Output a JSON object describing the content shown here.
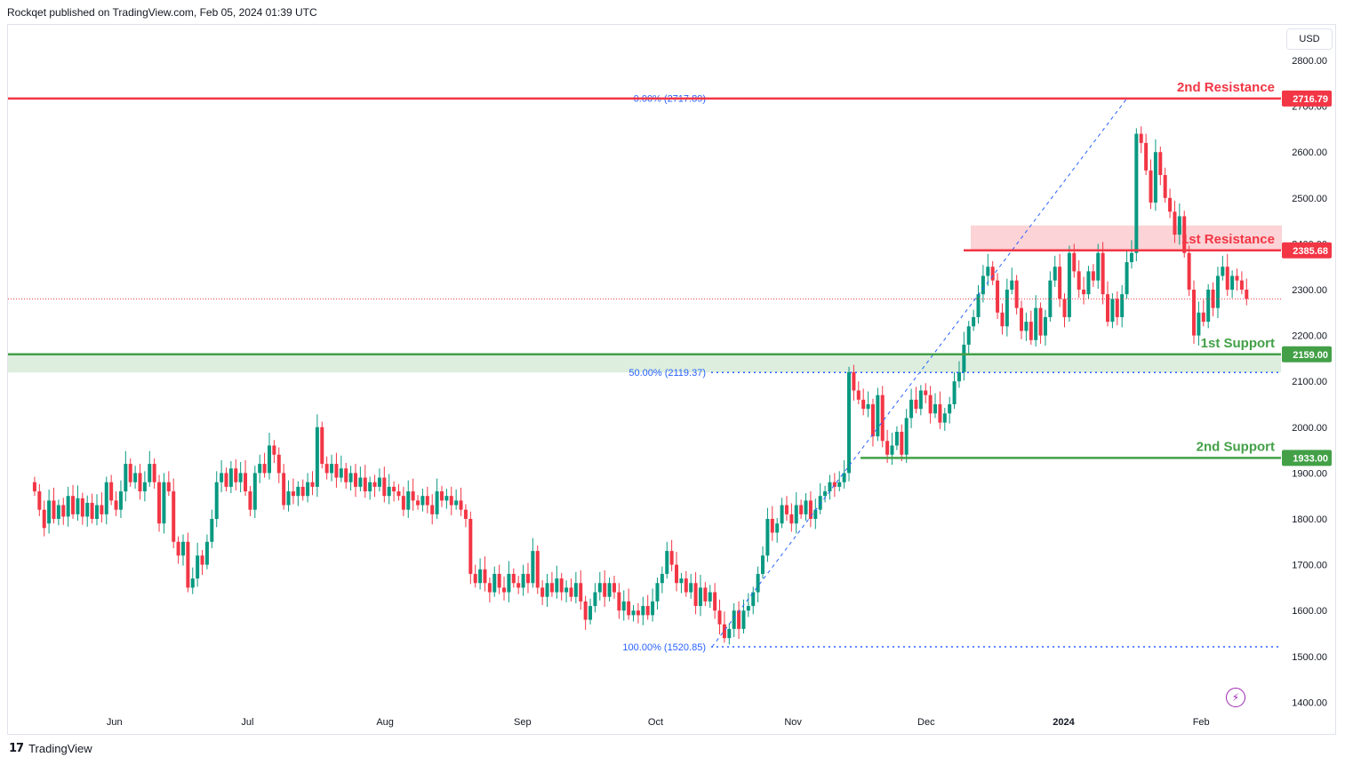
{
  "header": {
    "published": "Rockqet published on TradingView.com, Feb 05, 2024 01:39 UTC"
  },
  "footer": {
    "brand": "TradingView",
    "logo_glyph": "17"
  },
  "price_scale": {
    "currency": "USD"
  },
  "icons": {
    "flash": "⚡"
  },
  "colors": {
    "up": "#089981",
    "down": "#f23645",
    "resistance": "#f23645",
    "support": "#43a047",
    "fib": "#2962ff",
    "resistance_zone": "rgba(242,54,69,0.22)",
    "support_zone": "rgba(67,160,71,0.18)"
  },
  "chart_data": {
    "type": "candlestick",
    "title": "",
    "ylim": [
      1380,
      2870
    ],
    "y_ticks": [
      1400,
      1500,
      1600,
      1700,
      1800,
      1900,
      2000,
      2100,
      2200,
      2300,
      2400,
      2500,
      2600,
      2700,
      2800
    ],
    "y_tick_labels": [
      "1400.00",
      "1500.00",
      "1600.00",
      "1700.00",
      "1800.00",
      "1900.00",
      "2000.00",
      "2100.00",
      "2200.00",
      "2300.00",
      "2400.00",
      "2500.00",
      "2600.00",
      "2700.00",
      "2800.00"
    ],
    "x_labels": [
      {
        "label": "Jun",
        "day": 18
      },
      {
        "label": "Jul",
        "day": 48
      },
      {
        "label": "Aug",
        "day": 79
      },
      {
        "label": "Sep",
        "day": 110
      },
      {
        "label": "Oct",
        "day": 140
      },
      {
        "label": "Nov",
        "day": 171
      },
      {
        "label": "Dec",
        "day": 201
      },
      {
        "label": "2024",
        "day": 232,
        "bold": true
      },
      {
        "label": "Feb",
        "day": 263
      }
    ],
    "x_range": [
      -6,
      281
    ],
    "candles": [
      [
        1880,
        1860
      ],
      [
        1860,
        1820
      ],
      [
        1820,
        1780
      ],
      [
        1790,
        1840
      ],
      [
        1840,
        1800
      ],
      [
        1800,
        1830
      ],
      [
        1830,
        1805
      ],
      [
        1805,
        1850
      ],
      [
        1850,
        1810
      ],
      [
        1810,
        1845
      ],
      [
        1845,
        1805
      ],
      [
        1805,
        1835
      ],
      [
        1835,
        1800
      ],
      [
        1800,
        1830
      ],
      [
        1830,
        1810
      ],
      [
        1810,
        1880
      ],
      [
        1880,
        1840
      ],
      [
        1840,
        1820
      ],
      [
        1820,
        1860
      ],
      [
        1860,
        1920
      ],
      [
        1920,
        1880
      ],
      [
        1880,
        1900
      ],
      [
        1900,
        1860
      ],
      [
        1860,
        1880
      ],
      [
        1880,
        1920
      ],
      [
        1920,
        1880
      ],
      [
        1880,
        1790
      ],
      [
        1790,
        1880
      ],
      [
        1880,
        1860
      ],
      [
        1860,
        1750
      ],
      [
        1750,
        1720
      ],
      [
        1720,
        1750
      ],
      [
        1750,
        1650
      ],
      [
        1650,
        1670
      ],
      [
        1670,
        1720
      ],
      [
        1720,
        1700
      ],
      [
        1700,
        1750
      ],
      [
        1750,
        1800
      ],
      [
        1800,
        1880
      ],
      [
        1880,
        1900
      ],
      [
        1900,
        1870
      ],
      [
        1870,
        1910
      ],
      [
        1910,
        1880
      ],
      [
        1880,
        1900
      ],
      [
        1900,
        1860
      ],
      [
        1860,
        1820
      ],
      [
        1820,
        1900
      ],
      [
        1900,
        1920
      ],
      [
        1920,
        1900
      ],
      [
        1900,
        1960
      ],
      [
        1960,
        1940
      ],
      [
        1940,
        1900
      ],
      [
        1900,
        1830
      ],
      [
        1830,
        1860
      ],
      [
        1860,
        1850
      ],
      [
        1850,
        1870
      ],
      [
        1870,
        1850
      ],
      [
        1850,
        1880
      ],
      [
        1880,
        1870
      ],
      [
        1870,
        2000
      ],
      [
        2000,
        1920
      ],
      [
        1920,
        1900
      ],
      [
        1900,
        1920
      ],
      [
        1920,
        1890
      ],
      [
        1890,
        1910
      ],
      [
        1910,
        1880
      ],
      [
        1880,
        1900
      ],
      [
        1900,
        1870
      ],
      [
        1870,
        1890
      ],
      [
        1890,
        1860
      ],
      [
        1860,
        1880
      ],
      [
        1880,
        1870
      ],
      [
        1870,
        1890
      ],
      [
        1890,
        1850
      ],
      [
        1850,
        1870
      ],
      [
        1870,
        1860
      ],
      [
        1860,
        1850
      ],
      [
        1850,
        1820
      ],
      [
        1820,
        1860
      ],
      [
        1860,
        1840
      ],
      [
        1840,
        1830
      ],
      [
        1830,
        1850
      ],
      [
        1850,
        1830
      ],
      [
        1830,
        1810
      ],
      [
        1810,
        1860
      ],
      [
        1860,
        1840
      ],
      [
        1840,
        1850
      ],
      [
        1850,
        1830
      ],
      [
        1830,
        1840
      ],
      [
        1840,
        1820
      ],
      [
        1820,
        1800
      ],
      [
        1800,
        1680
      ],
      [
        1680,
        1660
      ],
      [
        1660,
        1690
      ],
      [
        1690,
        1660
      ],
      [
        1660,
        1640
      ],
      [
        1640,
        1680
      ],
      [
        1680,
        1650
      ],
      [
        1650,
        1640
      ],
      [
        1640,
        1680
      ],
      [
        1680,
        1660
      ],
      [
        1660,
        1650
      ],
      [
        1650,
        1680
      ],
      [
        1680,
        1660
      ],
      [
        1660,
        1730
      ],
      [
        1730,
        1650
      ],
      [
        1650,
        1630
      ],
      [
        1630,
        1660
      ],
      [
        1660,
        1640
      ],
      [
        1640,
        1670
      ],
      [
        1670,
        1640
      ],
      [
        1640,
        1650
      ],
      [
        1650,
        1630
      ],
      [
        1630,
        1660
      ],
      [
        1660,
        1620
      ],
      [
        1620,
        1580
      ],
      [
        1580,
        1610
      ],
      [
        1610,
        1640
      ],
      [
        1640,
        1660
      ],
      [
        1660,
        1630
      ],
      [
        1630,
        1660
      ],
      [
        1660,
        1640
      ],
      [
        1640,
        1600
      ],
      [
        1600,
        1620
      ],
      [
        1620,
        1590
      ],
      [
        1590,
        1600
      ],
      [
        1600,
        1590
      ],
      [
        1590,
        1610
      ],
      [
        1610,
        1590
      ],
      [
        1590,
        1620
      ],
      [
        1620,
        1660
      ],
      [
        1660,
        1680
      ],
      [
        1680,
        1730
      ],
      [
        1730,
        1700
      ],
      [
        1700,
        1660
      ],
      [
        1660,
        1670
      ],
      [
        1670,
        1640
      ],
      [
        1640,
        1660
      ],
      [
        1660,
        1610
      ],
      [
        1610,
        1650
      ],
      [
        1650,
        1620
      ],
      [
        1620,
        1640
      ],
      [
        1640,
        1600
      ],
      [
        1600,
        1570
      ],
      [
        1570,
        1540
      ],
      [
        1540,
        1560
      ],
      [
        1560,
        1600
      ],
      [
        1600,
        1560
      ],
      [
        1560,
        1600
      ],
      [
        1600,
        1610
      ],
      [
        1610,
        1640
      ],
      [
        1640,
        1680
      ],
      [
        1680,
        1720
      ],
      [
        1720,
        1800
      ],
      [
        1800,
        1770
      ],
      [
        1770,
        1790
      ],
      [
        1790,
        1830
      ],
      [
        1830,
        1810
      ],
      [
        1810,
        1790
      ],
      [
        1790,
        1830
      ],
      [
        1830,
        1810
      ],
      [
        1810,
        1840
      ],
      [
        1840,
        1800
      ],
      [
        1800,
        1820
      ],
      [
        1820,
        1850
      ],
      [
        1850,
        1860
      ],
      [
        1860,
        1880
      ],
      [
        1880,
        1870
      ],
      [
        1870,
        1880
      ],
      [
        1880,
        1900
      ],
      [
        1900,
        2120
      ],
      [
        2120,
        2080
      ],
      [
        2080,
        2060
      ],
      [
        2060,
        2040
      ],
      [
        2040,
        2050
      ],
      [
        2050,
        1980
      ],
      [
        1980,
        2070
      ],
      [
        2070,
        1970
      ],
      [
        1970,
        1940
      ],
      [
        1940,
        1960
      ],
      [
        1960,
        1990
      ],
      [
        1990,
        1940
      ],
      [
        1940,
        2020
      ],
      [
        2020,
        2060
      ],
      [
        2060,
        2040
      ],
      [
        2040,
        2080
      ],
      [
        2080,
        2070
      ],
      [
        2070,
        2030
      ],
      [
        2030,
        2050
      ],
      [
        2050,
        2010
      ],
      [
        2010,
        2030
      ],
      [
        2030,
        2050
      ],
      [
        2050,
        2100
      ],
      [
        2100,
        2120
      ],
      [
        2120,
        2180
      ],
      [
        2180,
        2220
      ],
      [
        2220,
        2240
      ],
      [
        2240,
        2290
      ],
      [
        2290,
        2330
      ],
      [
        2330,
        2350
      ],
      [
        2350,
        2320
      ],
      [
        2320,
        2250
      ],
      [
        2250,
        2220
      ],
      [
        2220,
        2300
      ],
      [
        2300,
        2320
      ],
      [
        2320,
        2260
      ],
      [
        2260,
        2210
      ],
      [
        2210,
        2230
      ],
      [
        2230,
        2190
      ],
      [
        2190,
        2260
      ],
      [
        2260,
        2200
      ],
      [
        2200,
        2240
      ],
      [
        2240,
        2320
      ],
      [
        2320,
        2350
      ],
      [
        2350,
        2280
      ],
      [
        2280,
        2240
      ],
      [
        2240,
        2380
      ],
      [
        2380,
        2340
      ],
      [
        2340,
        2300
      ],
      [
        2300,
        2290
      ],
      [
        2290,
        2340
      ],
      [
        2340,
        2320
      ],
      [
        2320,
        2380
      ],
      [
        2380,
        2290
      ],
      [
        2290,
        2230
      ],
      [
        2230,
        2280
      ],
      [
        2280,
        2240
      ],
      [
        2240,
        2290
      ],
      [
        2290,
        2360
      ],
      [
        2360,
        2380
      ],
      [
        2380,
        2640
      ],
      [
        2640,
        2620
      ],
      [
        2620,
        2560
      ],
      [
        2560,
        2490
      ],
      [
        2490,
        2600
      ],
      [
        2600,
        2550
      ],
      [
        2550,
        2500
      ],
      [
        2500,
        2470
      ],
      [
        2470,
        2420
      ],
      [
        2420,
        2460
      ],
      [
        2460,
        2380
      ],
      [
        2380,
        2300
      ],
      [
        2300,
        2200
      ],
      [
        2200,
        2250
      ],
      [
        2250,
        2230
      ],
      [
        2230,
        2300
      ],
      [
        2300,
        2260
      ],
      [
        2260,
        2330
      ],
      [
        2330,
        2350
      ],
      [
        2350,
        2300
      ],
      [
        2300,
        2330
      ],
      [
        2330,
        2320
      ],
      [
        2320,
        2300
      ],
      [
        2300,
        2280
      ]
    ],
    "lines": {
      "resistance_2": {
        "label": "2nd Resistance",
        "price": 2716.79,
        "price_label": "2716.79"
      },
      "resistance_1": {
        "label": "1st Resistance",
        "price": 2385.68,
        "price_label": "2385.68",
        "zone": [
          2385.68,
          2440
        ]
      },
      "support_1": {
        "label": "1st Support",
        "price": 2159.0,
        "price_label": "2159.00",
        "zone": [
          2119.37,
          2159.0
        ]
      },
      "support_2": {
        "label": "2nd Support",
        "price": 1933.0,
        "price_label": "1933.00"
      }
    },
    "fib": {
      "level_0": {
        "label": "0.00% (2717.89)",
        "price": 2717.89
      },
      "level_50": {
        "label": "50.00% (2119.37)",
        "price": 2119.37
      },
      "level_100": {
        "label": "100.00% (1520.85)",
        "price": 1520.85
      }
    },
    "last_price": 2280
  }
}
